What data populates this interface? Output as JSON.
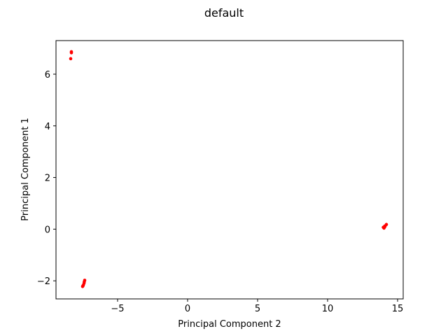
{
  "chart_data": {
    "type": "scatter",
    "title": "default",
    "xlabel": "Principal Component 2",
    "ylabel": "Principal Component 1",
    "xlim": [
      -9.4,
      15.4
    ],
    "ylim": [
      -2.7,
      7.3
    ],
    "xticks": [
      -5,
      0,
      5,
      10,
      15
    ],
    "yticks": [
      -2,
      0,
      2,
      4,
      6
    ],
    "xtick_labels": [
      "−5",
      "0",
      "5",
      "10",
      "15"
    ],
    "ytick_labels": [
      "−2",
      "0",
      "2",
      "4",
      "6"
    ],
    "grid": false,
    "series": [
      {
        "color": "#ff0000",
        "points": [
          [
            -8.3,
            6.87
          ],
          [
            -8.3,
            6.83
          ],
          [
            -8.35,
            6.6
          ],
          [
            -7.35,
            -1.98
          ],
          [
            -7.38,
            -2.04
          ],
          [
            -7.4,
            -2.1
          ],
          [
            -7.45,
            -2.17
          ],
          [
            -7.5,
            -2.22
          ],
          [
            -7.48,
            -2.2
          ],
          [
            13.98,
            0.07
          ],
          [
            14.03,
            0.04
          ],
          [
            14.08,
            0.12
          ],
          [
            14.2,
            0.18
          ],
          [
            14.1,
            0.1
          ]
        ]
      }
    ]
  }
}
